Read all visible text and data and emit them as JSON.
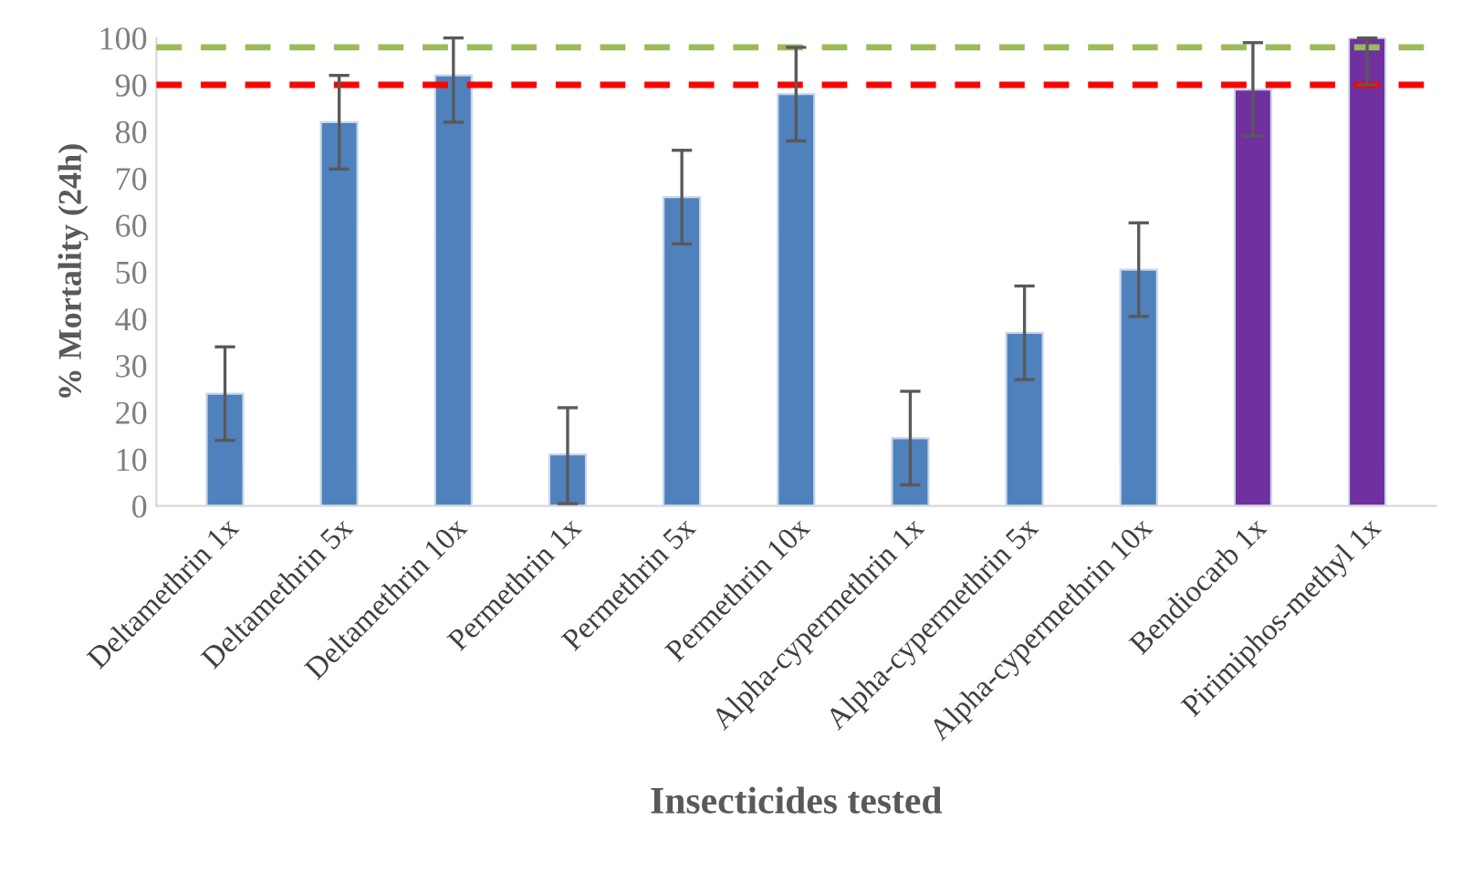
{
  "chart_data": {
    "type": "bar",
    "xlabel": "Insecticides tested",
    "ylabel": "% Mortality (24h)",
    "categories": [
      "Deltamethrin 1x",
      "Deltamethrin 5x",
      "Deltamethrin 10x",
      "Permethrin 1x",
      "Permethrin 5x",
      "Permethrin 10x",
      "Alpha-cypermethrin 1x",
      "Alpha-cypermethrin 5x",
      "Alpha-cypermethrin 10x",
      "Bendiocarb 1x",
      "Pirimiphos-methyl 1x"
    ],
    "values": [
      24,
      82,
      92,
      11,
      66,
      88,
      14.5,
      37,
      50.5,
      89,
      100
    ],
    "errors": [
      10,
      10,
      [
        82,
        100
      ],
      [
        0.5,
        21
      ],
      10,
      10,
      10,
      10,
      10,
      10,
      [
        90,
        100
      ]
    ],
    "colors": [
      "#4f81bd",
      "#4f81bd",
      "#4f81bd",
      "#4f81bd",
      "#4f81bd",
      "#4f81bd",
      "#4f81bd",
      "#4f81bd",
      "#4f81bd",
      "#7030a0",
      "#7030a0"
    ],
    "ylim": [
      0,
      100
    ],
    "yticks": [
      0,
      10,
      20,
      30,
      40,
      50,
      60,
      70,
      80,
      90,
      100
    ],
    "grid": false,
    "legend": false,
    "ref_lines": [
      {
        "axis": "y",
        "value": 98,
        "color": "#9bbb59",
        "line_style": "dashed"
      },
      {
        "axis": "y",
        "value": 90,
        "color": "#ff0000",
        "line_style": "dashed"
      }
    ]
  }
}
